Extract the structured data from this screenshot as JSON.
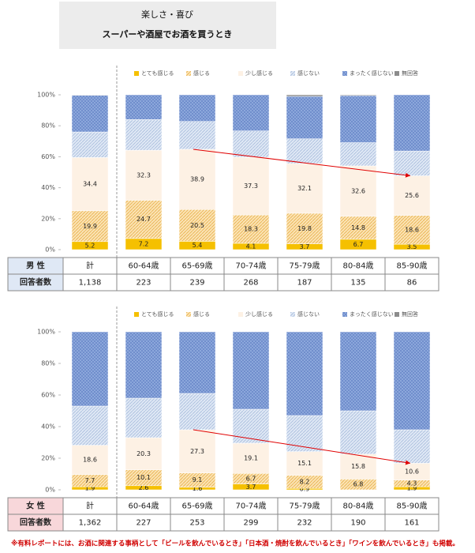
{
  "header": {
    "category": "楽しさ・喜び",
    "title": "スーパーや酒屋でお酒を買うとき"
  },
  "chart_data": [
    {
      "type": "bar",
      "stacked": true,
      "categories": [
        "計",
        "60-64歳",
        "65-69歳",
        "70-74歳",
        "75-79歳",
        "80-84歳",
        "85-90歳"
      ],
      "series": [
        {
          "name": "とても感じる",
          "color": "#f5c000",
          "values": [
            5.2,
            7.2,
            5.4,
            4.1,
            3.7,
            6.7,
            3.5
          ]
        },
        {
          "name": "感じる",
          "color": "#fbe3b4",
          "values": [
            19.9,
            24.7,
            20.5,
            18.3,
            19.8,
            14.8,
            18.6
          ]
        },
        {
          "name": "少し感じる",
          "color": "#fdf1e4",
          "values": [
            34.4,
            32.3,
            38.9,
            37.3,
            32.1,
            32.6,
            25.6
          ]
        },
        {
          "name": "感じない",
          "color": "#dfe8f5",
          "values": [
            16.5,
            19.8,
            18,
            17,
            16,
            15,
            16
          ]
        },
        {
          "name": "まったく感じない",
          "color": "#93aee0",
          "values": [
            23.7,
            16,
            17.2,
            23.3,
            27.4,
            30.4,
            36.3
          ]
        },
        {
          "name": "無回答",
          "color": "#8c8c8c",
          "values": [
            0.3,
            0,
            0,
            0,
            1,
            0.5,
            0
          ]
        }
      ],
      "ylim": [
        0,
        100
      ],
      "yticks": [
        {
          "value": 0,
          "label": "0%"
        },
        {
          "value": 20,
          "label": "20%"
        },
        {
          "value": 40,
          "label": "40%"
        },
        {
          "value": 60,
          "label": "60%"
        },
        {
          "value": 80,
          "label": "80%"
        },
        {
          "value": 100,
          "label": "100%"
        }
      ],
      "row_label": "男 性",
      "count_label": "回答者数",
      "counts": [
        "1,138",
        "223",
        "239",
        "268",
        "187",
        "135",
        "86"
      ]
    },
    {
      "type": "bar",
      "stacked": true,
      "categories": [
        "計",
        "60-64歳",
        "65-69歳",
        "70-74歳",
        "75-79歳",
        "80-84歳",
        "85-90歳"
      ],
      "series": [
        {
          "name": "とても感じる",
          "color": "#f5c000",
          "values": [
            1.9,
            2.6,
            1.6,
            3.7,
            0.9,
            0,
            1.9
          ]
        },
        {
          "name": "感じる",
          "color": "#fbe3b4",
          "values": [
            7.7,
            10.1,
            9.1,
            6.7,
            8.2,
            6.8,
            4.3
          ]
        },
        {
          "name": "少し感じる",
          "color": "#fdf1e4",
          "values": [
            18.6,
            20.3,
            27.3,
            19.1,
            15.1,
            15.8,
            10.6
          ]
        },
        {
          "name": "感じない",
          "color": "#dfe8f5",
          "values": [
            24.8,
            25,
            23,
            21.5,
            22.8,
            27.4,
            21.2
          ]
        },
        {
          "name": "まったく感じない",
          "color": "#93aee0",
          "values": [
            47,
            42,
            39,
            49,
            53,
            50,
            62
          ]
        },
        {
          "name": "無回答",
          "color": "#8c8c8c",
          "values": [
            0,
            0,
            0,
            0,
            0,
            0,
            0
          ]
        }
      ],
      "ylim": [
        0,
        100
      ],
      "yticks": [
        {
          "value": 0,
          "label": "0%"
        },
        {
          "value": 20,
          "label": "20%"
        },
        {
          "value": 40,
          "label": "40%"
        },
        {
          "value": 60,
          "label": "60%"
        },
        {
          "value": 80,
          "label": "80%"
        },
        {
          "value": 100,
          "label": "100%"
        }
      ],
      "row_label": "女 性",
      "count_label": "回答者数",
      "counts": [
        "1,362",
        "227",
        "253",
        "299",
        "232",
        "190",
        "161"
      ]
    }
  ],
  "footnote": "※有料レポートには、お酒に関連する事柄として「ビールを飲んでいるとき」「日本酒・焼酎を飲んでいるとき」「ワインを飲んでいるとき」も掲載。"
}
